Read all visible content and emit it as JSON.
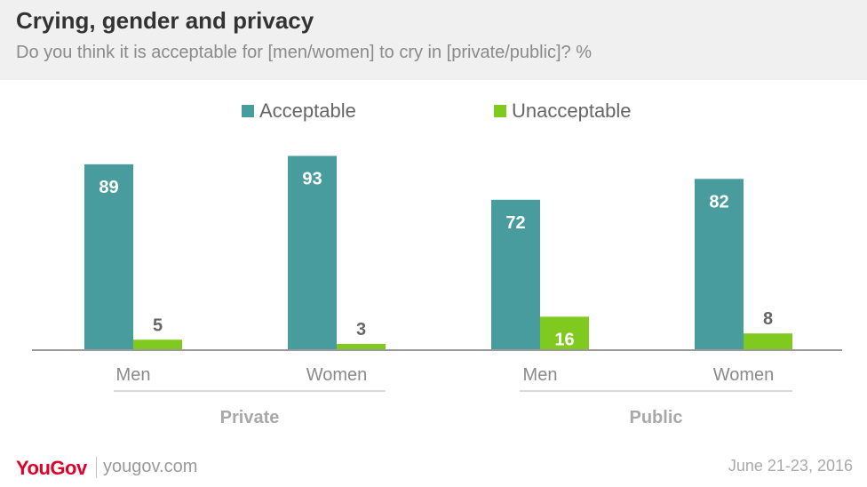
{
  "header": {
    "title": "Crying, gender and privacy",
    "subtitle": "Do you think it is acceptable for [men/women] to cry in [private/public]? %"
  },
  "legend": {
    "acceptable": "Acceptable",
    "unacceptable": "Unacceptable"
  },
  "colors": {
    "acceptable": "#489c9e",
    "unacceptable": "#80c91e",
    "brand": "#e0002a"
  },
  "chart_data": {
    "type": "bar",
    "groups": [
      "Private",
      "Public"
    ],
    "categories": [
      "Men",
      "Women",
      "Men",
      "Women"
    ],
    "category_groups": [
      "Private",
      "Private",
      "Public",
      "Public"
    ],
    "series": [
      {
        "name": "Acceptable",
        "values": [
          89,
          93,
          72,
          82
        ]
      },
      {
        "name": "Unacceptable",
        "values": [
          5,
          3,
          16,
          8
        ]
      }
    ],
    "ylim": [
      0,
      100
    ],
    "grid": false,
    "legend_position": "top"
  },
  "footer": {
    "brand": "YouGov",
    "url": "yougov.com",
    "date": "June 21-23, 2016"
  }
}
